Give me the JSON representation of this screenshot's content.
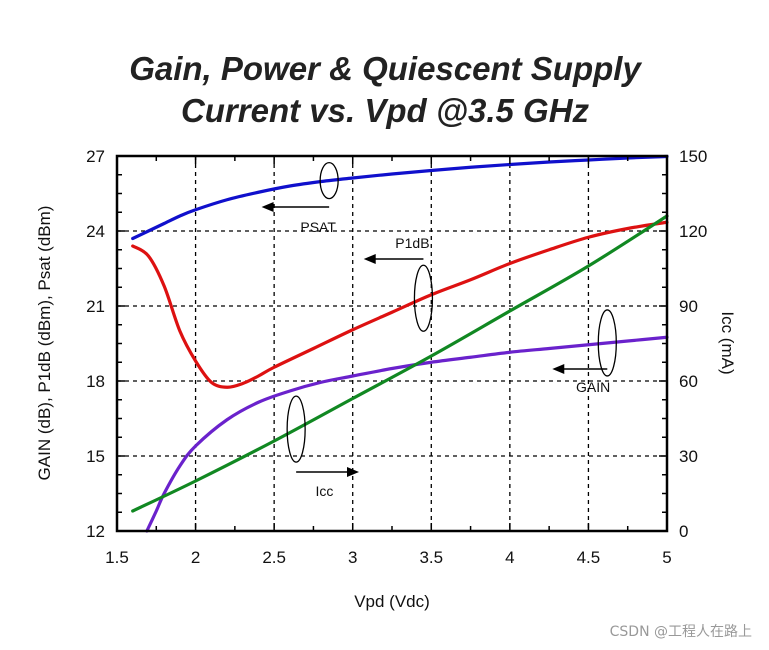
{
  "chart_data": {
    "type": "line",
    "title_line1": "Gain, Power & Quiescent Supply",
    "title_line2": "Current vs. Vpd @3.5 GHz",
    "xlabel": "Vpd (Vdc)",
    "ylabel_left": "GAIN (dB), P1dB (dBm), Psat (dBm)",
    "ylabel_right": "Icc (mA)",
    "xlim": [
      1.5,
      5
    ],
    "ylim_left": [
      12,
      27
    ],
    "ylim_right": [
      0,
      150
    ],
    "x_ticks": [
      "1.5",
      "2",
      "2.5",
      "3",
      "3.5",
      "4",
      "4.5",
      "5"
    ],
    "y_ticks_left": [
      "12",
      "15",
      "18",
      "21",
      "24",
      "27"
    ],
    "y_ticks_right": [
      "0",
      "30",
      "60",
      "90",
      "120",
      "150"
    ],
    "grid": true,
    "series": [
      {
        "name": "PSAT",
        "color": "#1010cc",
        "axis": "left",
        "x": [
          1.6,
          1.7,
          1.8,
          1.9,
          2.0,
          2.2,
          2.4,
          2.6,
          2.8,
          3.0,
          3.25,
          3.5,
          3.75,
          4.0,
          4.25,
          4.5,
          4.75,
          5.0
        ],
        "y": [
          23.7,
          24.0,
          24.3,
          24.6,
          24.85,
          25.25,
          25.55,
          25.8,
          25.98,
          26.12,
          26.28,
          26.42,
          26.55,
          26.66,
          26.76,
          26.84,
          26.92,
          26.98
        ]
      },
      {
        "name": "P1dB",
        "color": "#dd1111",
        "axis": "left",
        "x": [
          1.6,
          1.7,
          1.8,
          1.9,
          2.0,
          2.1,
          2.2,
          2.3,
          2.4,
          2.5,
          2.75,
          3.0,
          3.25,
          3.5,
          3.75,
          4.0,
          4.25,
          4.5,
          4.75,
          5.0
        ],
        "y": [
          23.4,
          23.0,
          21.8,
          20.0,
          18.8,
          17.95,
          17.75,
          17.9,
          18.2,
          18.55,
          19.3,
          20.05,
          20.75,
          21.45,
          22.05,
          22.7,
          23.25,
          23.75,
          24.1,
          24.35
        ]
      },
      {
        "name": "GAIN",
        "color": "#6a22cc",
        "axis": "left",
        "x": [
          1.69,
          1.75,
          1.8,
          1.9,
          2.0,
          2.2,
          2.4,
          2.6,
          2.8,
          3.0,
          3.25,
          3.5,
          3.75,
          4.0,
          4.25,
          4.5,
          4.75,
          5.0
        ],
        "y": [
          12.0,
          12.8,
          13.5,
          14.6,
          15.4,
          16.45,
          17.15,
          17.6,
          17.95,
          18.2,
          18.5,
          18.75,
          18.95,
          19.15,
          19.3,
          19.45,
          19.6,
          19.75
        ]
      },
      {
        "name": "Icc",
        "color": "#118822",
        "axis": "right",
        "x": [
          1.6,
          2.0,
          2.5,
          3.0,
          3.5,
          4.0,
          4.5,
          5.0
        ],
        "y": [
          8,
          20,
          36,
          53,
          70,
          88,
          106,
          126
        ]
      }
    ],
    "annotations": [
      {
        "label": "PSAT",
        "series": "PSAT"
      },
      {
        "label": "P1dB",
        "series": "P1dB"
      },
      {
        "label": "GAIN",
        "series": "GAIN"
      },
      {
        "label": "Icc",
        "series": "Icc"
      }
    ]
  },
  "watermark": "CSDN @工程人在路上"
}
